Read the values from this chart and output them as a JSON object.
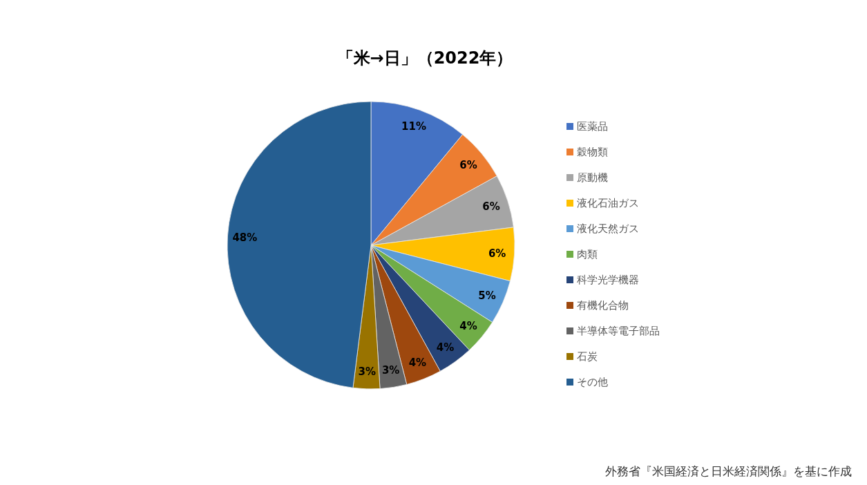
{
  "chart_data": {
    "type": "pie",
    "title": "「米→日」（2022年）",
    "categories": [
      "医薬品",
      "穀物類",
      "原動機",
      "液化石油ガス",
      "液化天然ガス",
      "肉類",
      "科学光学機器",
      "有機化合物",
      "半導体等電子部品",
      "石炭",
      "その他"
    ],
    "values": [
      11,
      6,
      6,
      6,
      5,
      4,
      4,
      4,
      3,
      3,
      48
    ],
    "colors": [
      "#4472c4",
      "#ed7d31",
      "#a5a5a5",
      "#ffc000",
      "#5b9bd5",
      "#70ad47",
      "#264478",
      "#9e480e",
      "#636363",
      "#997300",
      "#255e91"
    ],
    "value_labels": [
      "11%",
      "6%",
      "6%",
      "6%",
      "5%",
      "4%",
      "4%",
      "4%",
      "3%",
      "3%",
      "48%"
    ],
    "legend": "right",
    "annotations": [
      "外務省『米国経済と日米経済関係』を基に作成"
    ]
  }
}
